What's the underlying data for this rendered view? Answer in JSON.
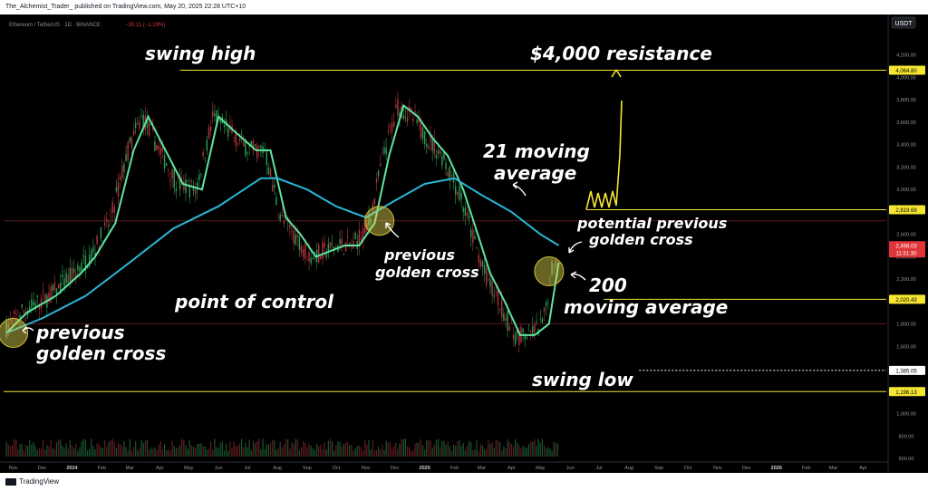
{
  "header": {
    "publisher_line": "The_Alchemist_Trader_ published on TradingView.com, May 20, 2025 22:28 UTC+10"
  },
  "symbol_line": {
    "text": "Ethereum / TetherUS · 1D · BINANCE",
    "change": "−30.11 (−1.19%)"
  },
  "currency_badge": "USDT",
  "footer": {
    "brand": "TradingView"
  },
  "chart_data": {
    "type": "line",
    "title": "",
    "instrument": "Ethereum / TetherUS · 1D · BINANCE",
    "ylim": [
      600,
      4400
    ],
    "y_ticks": [
      "4,200.00",
      "4,000.00",
      "3,800.00",
      "3,600.00",
      "3,400.00",
      "3,200.00",
      "3,000.00",
      "2,800.00",
      "2,600.00",
      "2,400.00",
      "2,200.00",
      "2,000.00",
      "1,800.00",
      "1,600.00",
      "1,400.00",
      "1,200.00",
      "1,000.00",
      "800.00",
      "600.00"
    ],
    "x_ticks": [
      "Nov",
      "Dec",
      "2024",
      "Feb",
      "Mar",
      "Apr",
      "May",
      "Jun",
      "Jul",
      "Aug",
      "Sep",
      "Oct",
      "Nov",
      "Dec",
      "2025",
      "Feb",
      "Mar",
      "Apr",
      "May",
      "Jun",
      "Jul",
      "Aug",
      "Sep",
      "Oct",
      "Nov",
      "Dec",
      "2026",
      "Feb",
      "Mar",
      "Apr"
    ],
    "price_labels": [
      {
        "value": 4064.8,
        "text": "4,064.80",
        "color": "#f5e633"
      },
      {
        "value": 2819.69,
        "text": "2,819.69",
        "color": "#f5e633"
      },
      {
        "value": 2498.03,
        "text": "2,498.03",
        "sub": "11:31:30",
        "color": "#e0363a"
      },
      {
        "value": 2020.43,
        "text": "2,020.43",
        "color": "#f5e633"
      },
      {
        "value": 1385.05,
        "text": "1,385.05",
        "color": "#ffffff"
      },
      {
        "value": 1196.13,
        "text": "1,196.13",
        "color": "#f5e633"
      }
    ],
    "horizontal_lines": [
      {
        "value": 4064.8,
        "color": "#f5e633",
        "from": 0.2
      },
      {
        "value": 2819.69,
        "color": "#f5e633",
        "from": 0.66
      },
      {
        "value": 2020.43,
        "color": "#f5e633",
        "from": 0.68
      },
      {
        "value": 1385.05,
        "color": "#ffffff",
        "from": 0.72,
        "dashed": true
      },
      {
        "value": 1196.13,
        "color": "#f5e633",
        "from": 0.0
      }
    ],
    "series": [
      {
        "name": "21 moving average",
        "color": "#5fe3a1",
        "x": [
          "Oct 25 2023",
          "Nov 15 2023",
          "Dec 15 2023",
          "Jan 10 2024",
          "Jan 25 2024",
          "Feb 15 2024",
          "Mar 5 2024",
          "Mar 20 2024",
          "Apr 10 2024",
          "Apr 25 2024",
          "May 15 2024",
          "Jun 1 2024",
          "Jun 20 2024",
          "Jul 10 2024",
          "Jul 25 2024",
          "Aug 10 2024",
          "Aug 25 2024",
          "Sep 10 2024",
          "Sep 25 2024",
          "Oct 10 2024",
          "Oct 25 2024",
          "Nov 10 2024",
          "Nov 25 2024",
          "Dec 10 2024",
          "Dec 25 2024",
          "Jan 10 2025",
          "Jan 25 2025",
          "Feb 10 2025",
          "Feb 25 2025",
          "Mar 10 2025",
          "Mar 25 2025",
          "Apr 10 2025",
          "Apr 25 2025",
          "May 10 2025",
          "May 20 2025"
        ],
        "values": [
          1720,
          1900,
          2050,
          2250,
          2400,
          2700,
          3350,
          3650,
          3300,
          3050,
          3000,
          3650,
          3500,
          3350,
          3350,
          2750,
          2600,
          2400,
          2450,
          2500,
          2500,
          2700,
          3300,
          3750,
          3650,
          3450,
          3300,
          3000,
          2600,
          2250,
          2000,
          1700,
          1700,
          1800,
          2350
        ]
      },
      {
        "name": "200 moving average",
        "color": "#29b6d6",
        "x": [
          "Oct 25 2023",
          "Dec 1 2023",
          "Jan 15 2024",
          "Mar 1 2024",
          "Apr 15 2024",
          "Jun 1 2024",
          "Jul 15 2024",
          "Aug 1 2024",
          "Sep 1 2024",
          "Oct 1 2024",
          "Nov 1 2024",
          "Dec 1 2024",
          "Jan 1 2025",
          "Feb 1 2025",
          "Mar 1 2025",
          "Apr 1 2025",
          "May 1 2025",
          "May 20 2025"
        ],
        "values": [
          1720,
          1850,
          2050,
          2350,
          2650,
          2850,
          3100,
          3100,
          3000,
          2850,
          2750,
          2900,
          3050,
          3100,
          2950,
          2800,
          2600,
          2500
        ]
      }
    ],
    "annotations": [
      {
        "text": "swing high"
      },
      {
        "text": "$4,000 resistance"
      },
      {
        "text": "21 moving average"
      },
      {
        "text": "potential previous golden cross"
      },
      {
        "text": "200 moving average"
      },
      {
        "text": "point of control"
      },
      {
        "text": "previous golden cross",
        "which": "left"
      },
      {
        "text": "previous golden cross",
        "which": "middle"
      },
      {
        "text": "swing low"
      }
    ],
    "grid": false,
    "legend": "none"
  }
}
